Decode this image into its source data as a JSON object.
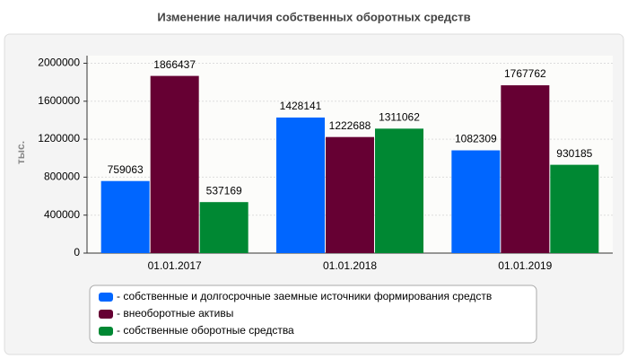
{
  "chart_data": {
    "type": "bar",
    "title": "Изменение наличия собственных оборотных средств",
    "y_label": "тыс.",
    "categories": [
      "01.01.2017",
      "01.01.2018",
      "01.01.2019"
    ],
    "series": [
      {
        "name": "- собственные и долгосрочные заемные источники формирования средств",
        "color": "#0066ff",
        "values": [
          759063,
          1428141,
          1082309
        ]
      },
      {
        "name": "- внеоборотные активы",
        "color": "#660033",
        "values": [
          1866437,
          1222688,
          1767762
        ]
      },
      {
        "name": "- собственные оборотные средства",
        "color": "#008833",
        "values": [
          537169,
          1311062,
          930185
        ]
      }
    ],
    "ylim": [
      0,
      2080000
    ],
    "yticks": [
      0,
      400000,
      800000,
      1200000,
      1600000,
      2000000
    ],
    "grid": true
  }
}
